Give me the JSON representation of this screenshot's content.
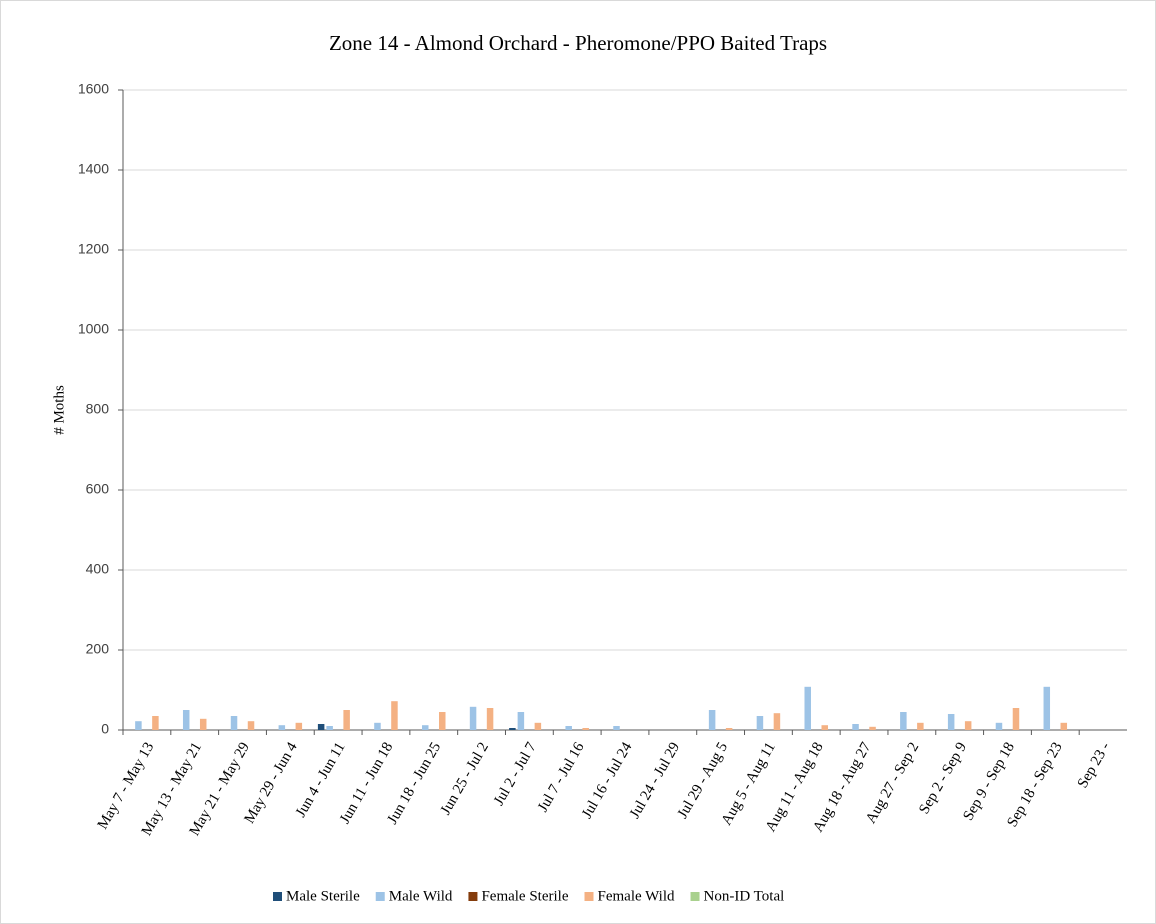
{
  "chart_data": {
    "type": "bar",
    "title": "Zone 14 - Almond Orchard - Pheromone/PPO  Baited Traps",
    "y_label": "# Moths",
    "categories": [
      "May 7 - May 13",
      "May 13 - May 21",
      "May 21 - May 29",
      "May 29 - Jun 4",
      "Jun 4 - Jun 11",
      "Jun 11 - Jun 18",
      "Jun 18 - Jun 25",
      "Jun 25 - Jul 2",
      "Jul 2 - Jul 7",
      "Jul 7 - Jul 16",
      "Jul 16 - Jul 24",
      "Jul 24 - Jul 29",
      "Jul 29 - Aug 5",
      "Aug 5 - Aug 11",
      "Aug 11 - Aug 18",
      "Aug 18 - Aug 27",
      "Aug 27 - Sep 2",
      "Sep 2 - Sep 9",
      "Sep 9 - Sep 18",
      "Sep 18 - Sep 23",
      "Sep 23 -"
    ],
    "series": [
      {
        "name": "Male Sterile",
        "color": "#1f4e79",
        "values": [
          0,
          0,
          0,
          0,
          15,
          0,
          0,
          0,
          5,
          0,
          0,
          0,
          0,
          0,
          0,
          0,
          0,
          0,
          0,
          0,
          0
        ]
      },
      {
        "name": "Male Wild",
        "color": "#9dc3e6",
        "values": [
          22,
          50,
          35,
          12,
          10,
          18,
          12,
          58,
          45,
          10,
          10,
          0,
          50,
          35,
          108,
          15,
          45,
          40,
          18,
          108,
          0
        ]
      },
      {
        "name": "Female Sterile",
        "color": "#843c0c",
        "values": [
          0,
          0,
          0,
          0,
          0,
          0,
          0,
          0,
          0,
          0,
          0,
          0,
          0,
          0,
          0,
          0,
          0,
          0,
          0,
          0,
          0
        ]
      },
      {
        "name": "Female Wild",
        "color": "#f4b183",
        "values": [
          35,
          28,
          22,
          18,
          50,
          72,
          45,
          55,
          18,
          5,
          0,
          0,
          5,
          42,
          12,
          8,
          18,
          22,
          55,
          18,
          0
        ]
      },
      {
        "name": "Non-ID Total",
        "color": "#a9d18e",
        "values": [
          0,
          0,
          0,
          0,
          0,
          0,
          0,
          0,
          0,
          0,
          0,
          0,
          0,
          0,
          0,
          0,
          0,
          0,
          0,
          0,
          0
        ]
      }
    ],
    "ylim": [
      0,
      1600
    ],
    "yticks": [
      0,
      200,
      400,
      600,
      800,
      1000,
      1200,
      1400,
      1600
    ],
    "grid": true
  }
}
